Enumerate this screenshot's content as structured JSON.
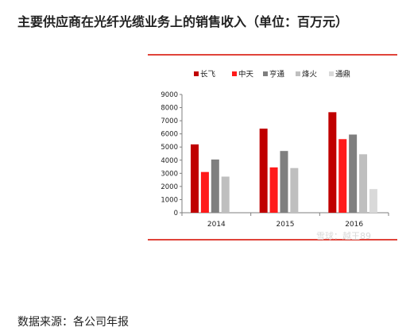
{
  "page": {
    "title": "主要供应商在光纤光缆业务上的销售收入（单位：百万元）",
    "source": "数据来源：各公司年报",
    "watermark": "雪球：越王89"
  },
  "chart_data": {
    "type": "bar",
    "title": "",
    "xlabel": "",
    "ylabel": "",
    "categories": [
      "2014",
      "2015",
      "2016"
    ],
    "ylim": [
      0,
      9000
    ],
    "yticks": [
      0,
      1000,
      2000,
      3000,
      4000,
      5000,
      6000,
      7000,
      8000,
      9000
    ],
    "grid": false,
    "legend_position": "top",
    "series": [
      {
        "name": "长飞",
        "color": "#c00000",
        "values": [
          5200,
          6400,
          7650
        ]
      },
      {
        "name": "中天",
        "color": "#ff1a1a",
        "values": [
          3100,
          3450,
          5600
        ]
      },
      {
        "name": "亨通",
        "color": "#7f7f7f",
        "values": [
          4050,
          4700,
          5950
        ]
      },
      {
        "name": "烽火",
        "color": "#bfbfbf",
        "values": [
          2750,
          3400,
          4450
        ]
      },
      {
        "name": "通鼎",
        "color": "#d9d9d9",
        "values": [
          null,
          null,
          1800
        ]
      }
    ]
  }
}
